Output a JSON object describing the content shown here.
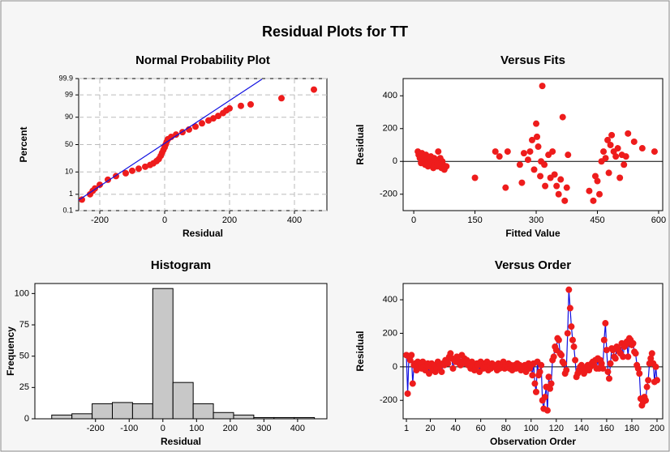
{
  "title": "Residual Plots for TT",
  "chart_data": [
    {
      "type": "probability",
      "title": "Normal Probability Plot",
      "x_label": "Residual",
      "y_label": "Percent",
      "y_scale": "normal-probability",
      "grid": true,
      "xlim": [
        -265,
        500
      ],
      "xticks": [
        -200,
        0,
        200,
        400
      ],
      "ylim": [
        0.1,
        99.9
      ],
      "yticks": [
        0.1,
        1,
        10,
        50,
        90,
        99,
        99.9
      ],
      "series": [
        {
          "color": "#ee1c1c",
          "x": [
            -255,
            -230,
            -222,
            -215,
            -200,
            -175,
            -150,
            -120,
            -100,
            -80,
            -60,
            -45,
            -35,
            -25,
            -18,
            -12,
            -8,
            -4,
            0,
            3,
            6,
            10,
            20,
            35,
            55,
            75,
            95,
            115,
            135,
            150,
            165,
            180,
            190,
            200,
            235,
            265,
            360,
            460
          ],
          "values": [
            0.5,
            1,
            1.5,
            2,
            3,
            5,
            7,
            9,
            11,
            13,
            15,
            17,
            19,
            22,
            25,
            30,
            35,
            40,
            45,
            50,
            55,
            60,
            64,
            68,
            72,
            76,
            80,
            84,
            87,
            89,
            91,
            93,
            94.5,
            95.5,
            96.5,
            97,
            98.5,
            99.5
          ]
        },
        {
          "type": "line",
          "color": "#1010e0",
          "x": [
            -265,
            300
          ],
          "values": [
            0.47,
            99.89
          ]
        }
      ]
    },
    {
      "type": "scatter",
      "title": "Versus Fits",
      "x_label": "Fitted Value",
      "y_label": "Residual",
      "refline": 0,
      "xlim": [
        -26,
        610
      ],
      "xticks": [
        0,
        150,
        300,
        450,
        600
      ],
      "ylim": [
        -300,
        505
      ],
      "yticks": [
        -200,
        0,
        200,
        400
      ],
      "series": [
        {
          "color": "#ee1c1c",
          "x": [
            10,
            12,
            15,
            18,
            20,
            22,
            25,
            28,
            30,
            33,
            35,
            38,
            40,
            42,
            45,
            48,
            50,
            52,
            55,
            58,
            60,
            62,
            65,
            68,
            70,
            72,
            75,
            80,
            150,
            200,
            210,
            225,
            230,
            260,
            265,
            270,
            280,
            285,
            290,
            295,
            300,
            302,
            305,
            310,
            312,
            315,
            320,
            322,
            330,
            335,
            340,
            345,
            350,
            355,
            360,
            365,
            370,
            375,
            378,
            430,
            440,
            445,
            450,
            455,
            460,
            465,
            470,
            475,
            478,
            482,
            485,
            490,
            495,
            500,
            505,
            510,
            515,
            520,
            525,
            540,
            560,
            590
          ],
          "values": [
            60,
            40,
            20,
            -10,
            50,
            30,
            0,
            -20,
            40,
            10,
            -30,
            20,
            -10,
            30,
            0,
            -40,
            20,
            -20,
            10,
            -30,
            60,
            -10,
            20,
            -40,
            0,
            -20,
            -50,
            -30,
            -100,
            60,
            30,
            -160,
            60,
            -20,
            -130,
            50,
            10,
            60,
            130,
            -50,
            230,
            150,
            90,
            -90,
            0,
            460,
            -20,
            -150,
            40,
            -100,
            60,
            -80,
            -150,
            -200,
            -110,
            270,
            -240,
            -160,
            40,
            -180,
            -240,
            -90,
            -120,
            -200,
            0,
            60,
            20,
            130,
            -70,
            100,
            160,
            60,
            30,
            80,
            -100,
            40,
            -20,
            30,
            170,
            120,
            80,
            60
          ]
        }
      ]
    },
    {
      "type": "histogram",
      "title": "Histogram",
      "x_label": "Residual",
      "y_label": "Frequency",
      "color": "#c8c8c8",
      "xlim": [
        -380,
        487
      ],
      "xticks": [
        -200,
        -100,
        0,
        100,
        200,
        300,
        400
      ],
      "ylim": [
        0,
        108
      ],
      "yticks": [
        0,
        25,
        50,
        75,
        100
      ],
      "bins": [
        -330,
        -270,
        -210,
        -150,
        -90,
        -30,
        30,
        90,
        150,
        210,
        270,
        330,
        390,
        450
      ],
      "values": [
        3,
        4,
        12,
        13,
        12,
        104,
        29,
        12,
        5,
        3,
        1,
        1,
        1
      ]
    },
    {
      "type": "line",
      "title": "Versus Order",
      "x_label": "Observation Order",
      "y_label": "Residual",
      "refline": 0,
      "xlim": [
        -1.6,
        204.5
      ],
      "xticks": [
        1,
        20,
        40,
        60,
        80,
        100,
        120,
        140,
        160,
        180,
        200
      ],
      "ylim": [
        -310,
        497
      ],
      "yticks": [
        -200,
        0,
        200,
        400
      ],
      "series": [
        {
          "color": "#ee1c1c",
          "line_color": "#1010e0",
          "x": [
            1,
            2,
            3,
            4,
            5,
            6,
            7,
            8,
            9,
            10,
            11,
            12,
            13,
            14,
            15,
            16,
            17,
            18,
            19,
            20,
            21,
            22,
            23,
            24,
            25,
            26,
            27,
            28,
            29,
            30,
            31,
            32,
            33,
            34,
            35,
            36,
            37,
            38,
            39,
            40,
            41,
            42,
            43,
            44,
            45,
            46,
            47,
            48,
            49,
            50,
            51,
            52,
            53,
            54,
            55,
            56,
            57,
            58,
            59,
            60,
            61,
            62,
            63,
            64,
            65,
            66,
            67,
            68,
            69,
            70,
            71,
            72,
            73,
            74,
            75,
            76,
            77,
            78,
            79,
            80,
            81,
            82,
            83,
            84,
            85,
            86,
            87,
            88,
            89,
            90,
            91,
            92,
            93,
            94,
            95,
            96,
            97,
            98,
            99,
            100,
            101,
            102,
            103,
            104,
            105,
            106,
            107,
            108,
            109,
            110,
            111,
            112,
            113,
            114,
            115,
            116,
            117,
            118,
            119,
            120,
            121,
            122,
            123,
            124,
            125,
            126,
            127,
            128,
            129,
            130,
            131,
            132,
            133,
            134,
            135,
            136,
            137,
            138,
            139,
            140,
            141,
            142,
            143,
            144,
            145,
            146,
            147,
            148,
            149,
            150,
            151,
            152,
            153,
            154,
            155,
            156,
            157,
            158,
            159,
            160,
            161,
            162,
            163,
            164,
            165,
            166,
            167,
            168,
            169,
            170,
            171,
            172,
            173,
            174,
            175,
            176,
            177,
            178,
            179,
            180,
            181,
            182,
            183,
            184,
            185,
            186,
            187,
            188,
            189,
            190,
            191,
            192,
            193,
            194,
            195,
            196,
            197,
            198,
            199,
            200
          ],
          "values": [
            70,
            -160,
            60,
            40,
            70,
            -100,
            10,
            20,
            -20,
            30,
            10,
            20,
            -10,
            30,
            0,
            -20,
            10,
            20,
            -40,
            0,
            20,
            -20,
            10,
            -30,
            -10,
            30,
            0,
            10,
            -30,
            20,
            10,
            40,
            30,
            20,
            60,
            80,
            50,
            -10,
            40,
            30,
            60,
            40,
            20,
            10,
            70,
            30,
            50,
            20,
            40,
            10,
            20,
            -10,
            30,
            10,
            -20,
            0,
            20,
            10,
            -30,
            30,
            10,
            -10,
            20,
            0,
            30,
            -20,
            10,
            -10,
            20,
            0,
            10,
            0,
            -20,
            20,
            -10,
            10,
            0,
            30,
            -10,
            10,
            0,
            20,
            -10,
            10,
            -20,
            0,
            10,
            -10,
            20,
            0,
            10,
            -20,
            0,
            -10,
            10,
            -30,
            0,
            20,
            -10,
            10,
            -50,
            20,
            -100,
            -150,
            30,
            -50,
            -30,
            10,
            -200,
            -250,
            -180,
            -120,
            -260,
            -60,
            -130,
            -100,
            40,
            60,
            120,
            100,
            170,
            160,
            80,
            70,
            30,
            20,
            -40,
            -20,
            200,
            460,
            350,
            240,
            160,
            120,
            40,
            -60,
            -40,
            -20,
            0,
            10,
            -20,
            -40,
            -10,
            -20,
            10,
            -20,
            0,
            20,
            30,
            10,
            40,
            -10,
            50,
            -10,
            40,
            20,
            -10,
            160,
            260,
            100,
            -30,
            -70,
            20,
            110,
            100,
            60,
            50,
            120,
            110,
            90,
            80,
            140,
            60,
            120,
            130,
            150,
            60,
            170,
            160,
            130,
            140,
            90,
            80,
            10,
            -10,
            -40,
            -190,
            -230,
            -210,
            -180,
            -200,
            -120,
            -80,
            20,
            50,
            80,
            20,
            -90,
            0,
            -80
          ]
        }
      ]
    }
  ]
}
